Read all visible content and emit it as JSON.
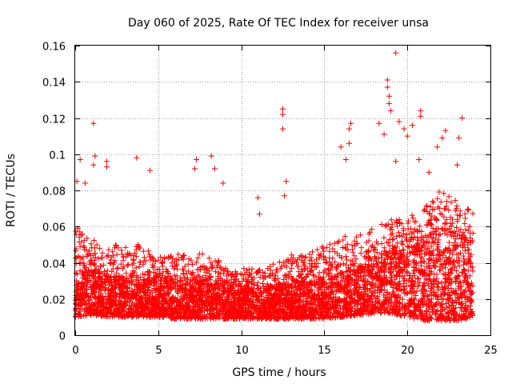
{
  "chart_data": {
    "type": "scatter",
    "title": "Day 060 of 2025, Rate Of TEC Index for receiver unsa",
    "xlabel": "GPS time / hours",
    "ylabel": "ROTI / TECUs",
    "xlim": [
      0,
      25
    ],
    "ylim": [
      0,
      0.16
    ],
    "xticks": [
      "0",
      "5",
      "10",
      "15",
      "20",
      "25"
    ],
    "yticks": [
      "0",
      "0.02",
      "0.04",
      "0.06",
      "0.08",
      "0.1",
      "0.12",
      "0.14",
      "0.16"
    ],
    "grid": true,
    "marker": "plus",
    "color": "#ff0000",
    "band": {
      "x": [
        0,
        1,
        2,
        3,
        4,
        5,
        6,
        7,
        8,
        9,
        10,
        11,
        12,
        13,
        14,
        15,
        16,
        17,
        18,
        19,
        20,
        21,
        22,
        23,
        24
      ],
      "low": [
        0.01,
        0.011,
        0.01,
        0.01,
        0.01,
        0.01,
        0.009,
        0.009,
        0.009,
        0.009,
        0.009,
        0.009,
        0.009,
        0.009,
        0.009,
        0.009,
        0.01,
        0.011,
        0.012,
        0.012,
        0.01,
        0.008,
        0.008,
        0.008,
        0.01
      ],
      "high": [
        0.06,
        0.055,
        0.05,
        0.05,
        0.05,
        0.045,
        0.045,
        0.045,
        0.045,
        0.04,
        0.038,
        0.036,
        0.04,
        0.045,
        0.045,
        0.05,
        0.055,
        0.055,
        0.06,
        0.065,
        0.065,
        0.07,
        0.08,
        0.075,
        0.07
      ],
      "dense_high": [
        0.04,
        0.035,
        0.032,
        0.032,
        0.03,
        0.03,
        0.03,
        0.03,
        0.03,
        0.028,
        0.026,
        0.025,
        0.027,
        0.028,
        0.03,
        0.032,
        0.035,
        0.036,
        0.04,
        0.045,
        0.048,
        0.05,
        0.06,
        0.055,
        0.05
      ]
    },
    "outliers": [
      {
        "x": 0.1,
        "y": 0.085
      },
      {
        "x": 0.3,
        "y": 0.097
      },
      {
        "x": 0.6,
        "y": 0.084
      },
      {
        "x": 1.1,
        "y": 0.117
      },
      {
        "x": 1.1,
        "y": 0.094
      },
      {
        "x": 1.2,
        "y": 0.099
      },
      {
        "x": 1.9,
        "y": 0.096
      },
      {
        "x": 1.9,
        "y": 0.093
      },
      {
        "x": 3.7,
        "y": 0.098
      },
      {
        "x": 4.5,
        "y": 0.091
      },
      {
        "x": 7.3,
        "y": 0.097
      },
      {
        "x": 7.2,
        "y": 0.092
      },
      {
        "x": 8.2,
        "y": 0.099
      },
      {
        "x": 8.4,
        "y": 0.092
      },
      {
        "x": 8.9,
        "y": 0.084
      },
      {
        "x": 11.0,
        "y": 0.076
      },
      {
        "x": 11.1,
        "y": 0.067
      },
      {
        "x": 12.5,
        "y": 0.125
      },
      {
        "x": 12.5,
        "y": 0.122
      },
      {
        "x": 12.5,
        "y": 0.114
      },
      {
        "x": 12.7,
        "y": 0.085
      },
      {
        "x": 12.6,
        "y": 0.077
      },
      {
        "x": 16.0,
        "y": 0.104
      },
      {
        "x": 16.3,
        "y": 0.097
      },
      {
        "x": 16.6,
        "y": 0.117
      },
      {
        "x": 16.5,
        "y": 0.114
      },
      {
        "x": 16.5,
        "y": 0.106
      },
      {
        "x": 18.3,
        "y": 0.117
      },
      {
        "x": 18.6,
        "y": 0.111
      },
      {
        "x": 18.8,
        "y": 0.141
      },
      {
        "x": 18.8,
        "y": 0.137
      },
      {
        "x": 18.9,
        "y": 0.132
      },
      {
        "x": 18.9,
        "y": 0.128
      },
      {
        "x": 19.0,
        "y": 0.124
      },
      {
        "x": 19.3,
        "y": 0.156
      },
      {
        "x": 19.3,
        "y": 0.096
      },
      {
        "x": 19.5,
        "y": 0.118
      },
      {
        "x": 19.8,
        "y": 0.114
      },
      {
        "x": 20.0,
        "y": 0.11
      },
      {
        "x": 20.3,
        "y": 0.116
      },
      {
        "x": 20.8,
        "y": 0.124
      },
      {
        "x": 20.8,
        "y": 0.121
      },
      {
        "x": 20.7,
        "y": 0.097
      },
      {
        "x": 21.3,
        "y": 0.09
      },
      {
        "x": 21.8,
        "y": 0.104
      },
      {
        "x": 22.1,
        "y": 0.109
      },
      {
        "x": 22.3,
        "y": 0.113
      },
      {
        "x": 23.1,
        "y": 0.109
      },
      {
        "x": 23.3,
        "y": 0.12
      },
      {
        "x": 23.0,
        "y": 0.094
      }
    ]
  }
}
